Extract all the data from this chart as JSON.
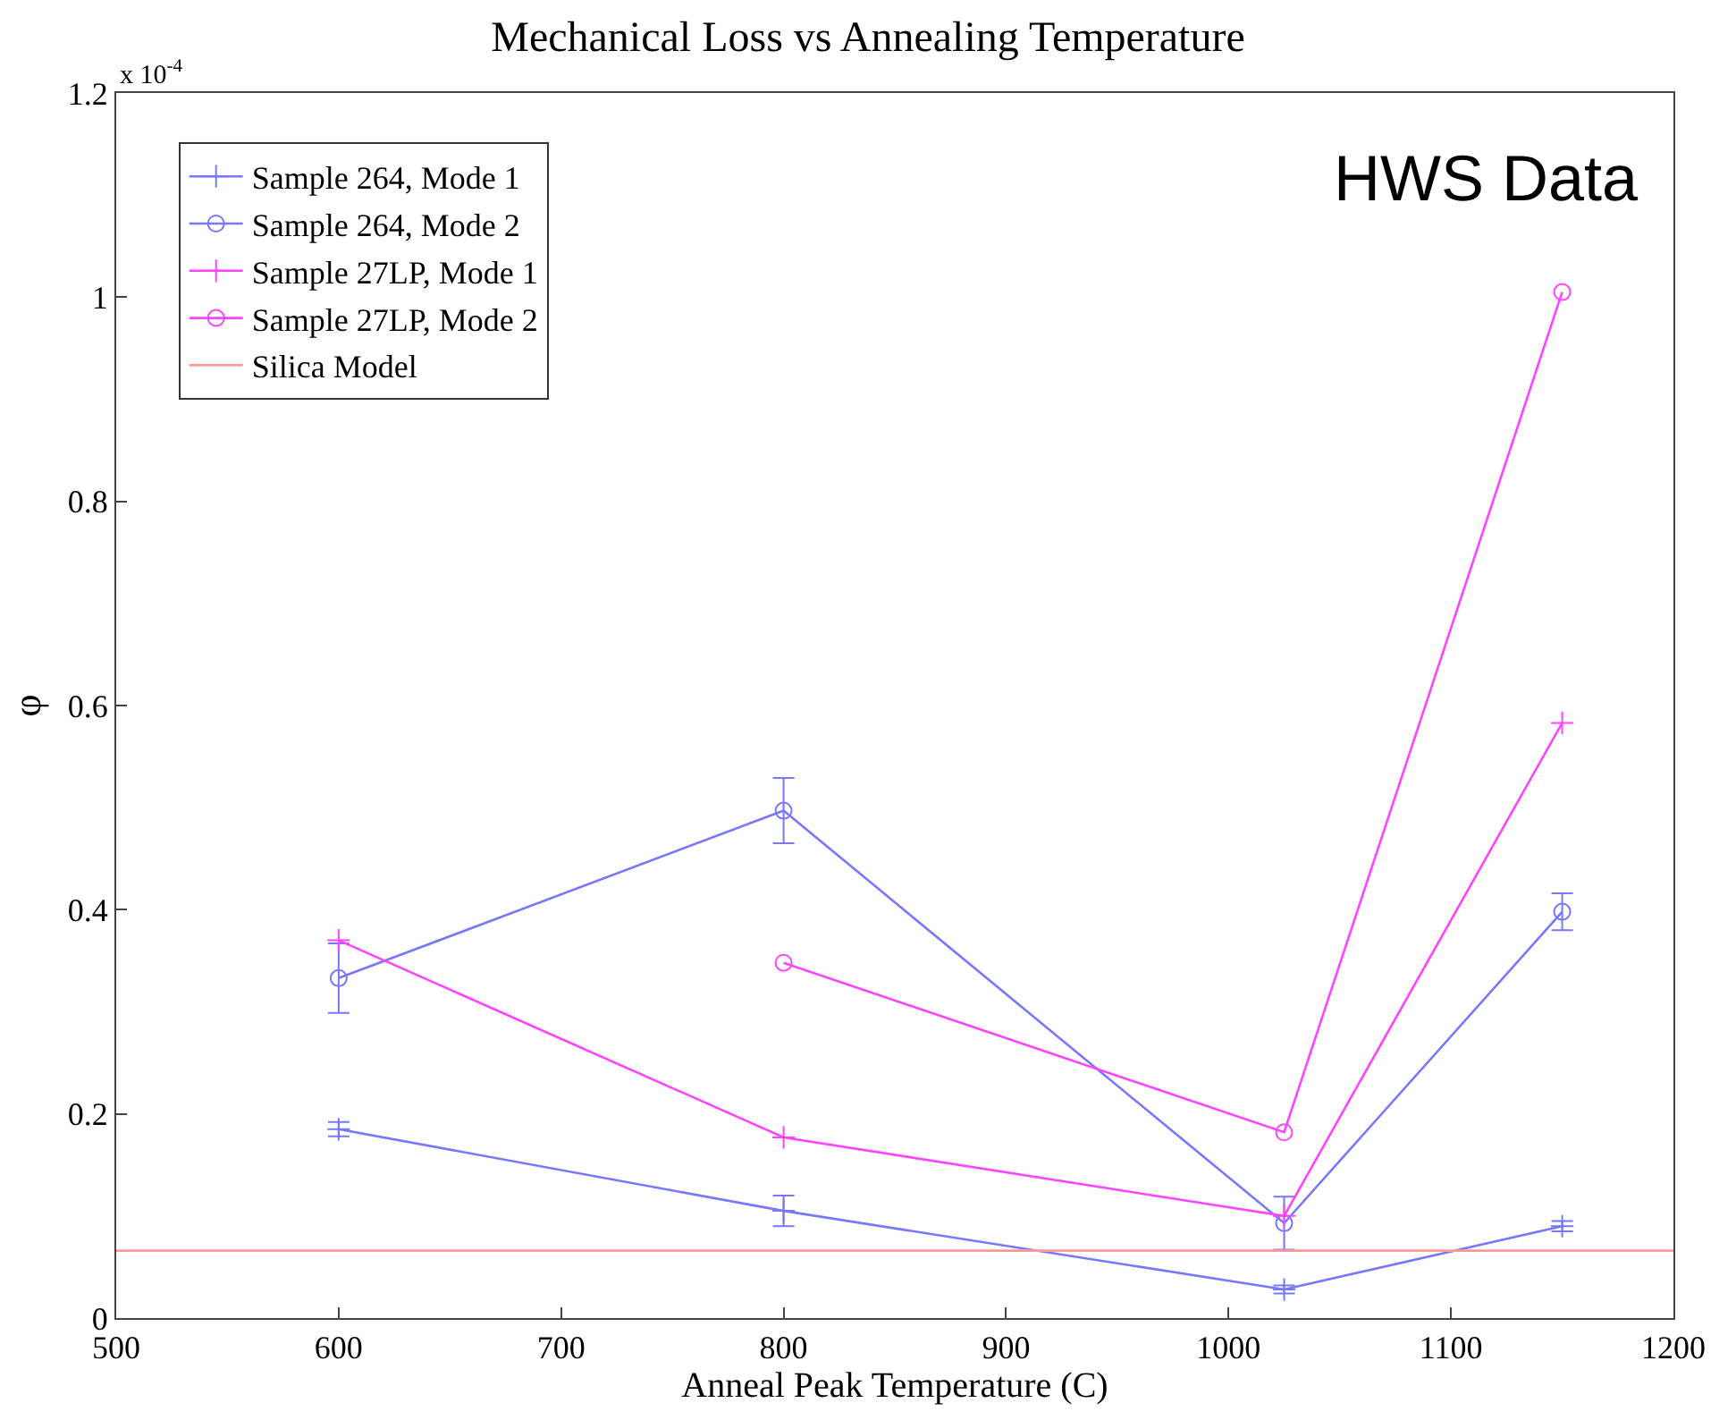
{
  "chart_data": {
    "type": "line",
    "title": "Mechanical Loss vs Annealing Temperature",
    "xlabel": "Anneal Peak Temperature (C)",
    "ylabel": "φ",
    "annotations": [
      "x 10$^{-4}$",
      "HWS Data"
    ],
    "xlim": [
      500,
      1200
    ],
    "xticks": [
      500,
      600,
      700,
      800,
      900,
      1000,
      1100,
      1200
    ],
    "ylim": [
      0,
      1.2
    ],
    "yticks": [
      0,
      0.2,
      0.4,
      0.6,
      0.8,
      1,
      1.2
    ],
    "legend": "top left",
    "series": [
      {
        "name": "Sample 264, Mode 1",
        "color": "#7777ff",
        "marker": "cross",
        "x": [
          600,
          800,
          1025,
          1150
        ],
        "values": [
          0.185,
          0.105,
          0.028,
          0.09
        ],
        "errors": [
          0.007,
          0.015,
          0.004,
          0.005
        ]
      },
      {
        "name": "Sample 264, Mode 2",
        "color": "#7777ff",
        "marker": "circle",
        "x": [
          600,
          800,
          1025,
          1150
        ],
        "values": [
          0.333,
          0.497,
          0.093,
          0.398
        ],
        "errors": [
          0.034,
          0.032,
          0.026,
          0.018
        ]
      },
      {
        "name": "Sample 27LP, Mode 1",
        "color": "#ff44ff",
        "marker": "cross",
        "x": [
          600,
          800,
          1025,
          1150
        ],
        "values": [
          0.37,
          0.177,
          0.1,
          0.583
        ]
      },
      {
        "name": "Sample 27LP, Mode 2",
        "color": "#ff44ff",
        "marker": "circle",
        "x": [
          800,
          1025,
          1150
        ],
        "values": [
          0.348,
          0.182,
          1.005
        ]
      },
      {
        "name": "Silica Model",
        "color": "#ff9999",
        "marker": "none",
        "x": [
          500,
          1200
        ],
        "values": [
          0.066,
          0.066
        ]
      }
    ]
  }
}
